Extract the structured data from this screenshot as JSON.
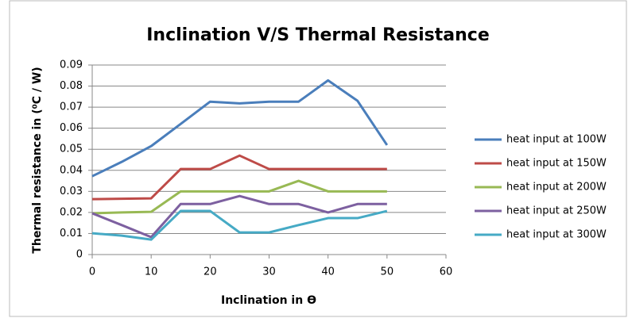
{
  "chart_data": {
    "type": "line",
    "title": "Inclination V/S Thermal Resistance",
    "x_label": "Inclination in ϴ",
    "y_label": "Thermal resistance  in  (⁰C / W)",
    "x": [
      0,
      5,
      10,
      15,
      20,
      25,
      30,
      35,
      40,
      45,
      50
    ],
    "series": [
      {
        "name": "heat input at 100W",
        "color": "#4a7ebb",
        "values": [
          0.0372,
          0.044,
          0.0515,
          0.062,
          0.0726,
          0.0718,
          0.0726,
          0.0726,
          0.0827,
          0.073,
          0.052
        ]
      },
      {
        "name": "heat input at 150W",
        "color": "#be4b48",
        "values": [
          0.0263,
          0.0265,
          0.0267,
          0.0406,
          0.0406,
          0.047,
          0.0406,
          0.0406,
          0.0406,
          0.0406,
          0.0406
        ]
      },
      {
        "name": "heat input at 200W",
        "color": "#98b954",
        "values": [
          0.0196,
          0.02,
          0.0203,
          0.03,
          0.03,
          0.03,
          0.03,
          0.035,
          0.03,
          0.03,
          0.03
        ]
      },
      {
        "name": "heat input at 250W",
        "color": "#7d60a0",
        "values": [
          0.0196,
          0.014,
          0.0083,
          0.024,
          0.024,
          0.0278,
          0.024,
          0.024,
          0.02,
          0.024,
          0.024
        ]
      },
      {
        "name": "heat input at 300W",
        "color": "#46aac5",
        "values": [
          0.0101,
          0.009,
          0.0071,
          0.0207,
          0.0207,
          0.0105,
          0.0105,
          0.014,
          0.0173,
          0.0173,
          0.0207
        ]
      }
    ],
    "xlim": [
      0,
      60
    ],
    "xticks": [
      0,
      10,
      20,
      30,
      40,
      50,
      60
    ],
    "ylim": [
      0,
      0.09
    ],
    "yticks": [
      0,
      0.01,
      0.02,
      0.03,
      0.04,
      0.05,
      0.06,
      0.07,
      0.08,
      0.09
    ],
    "grid": true,
    "legend": "right"
  }
}
